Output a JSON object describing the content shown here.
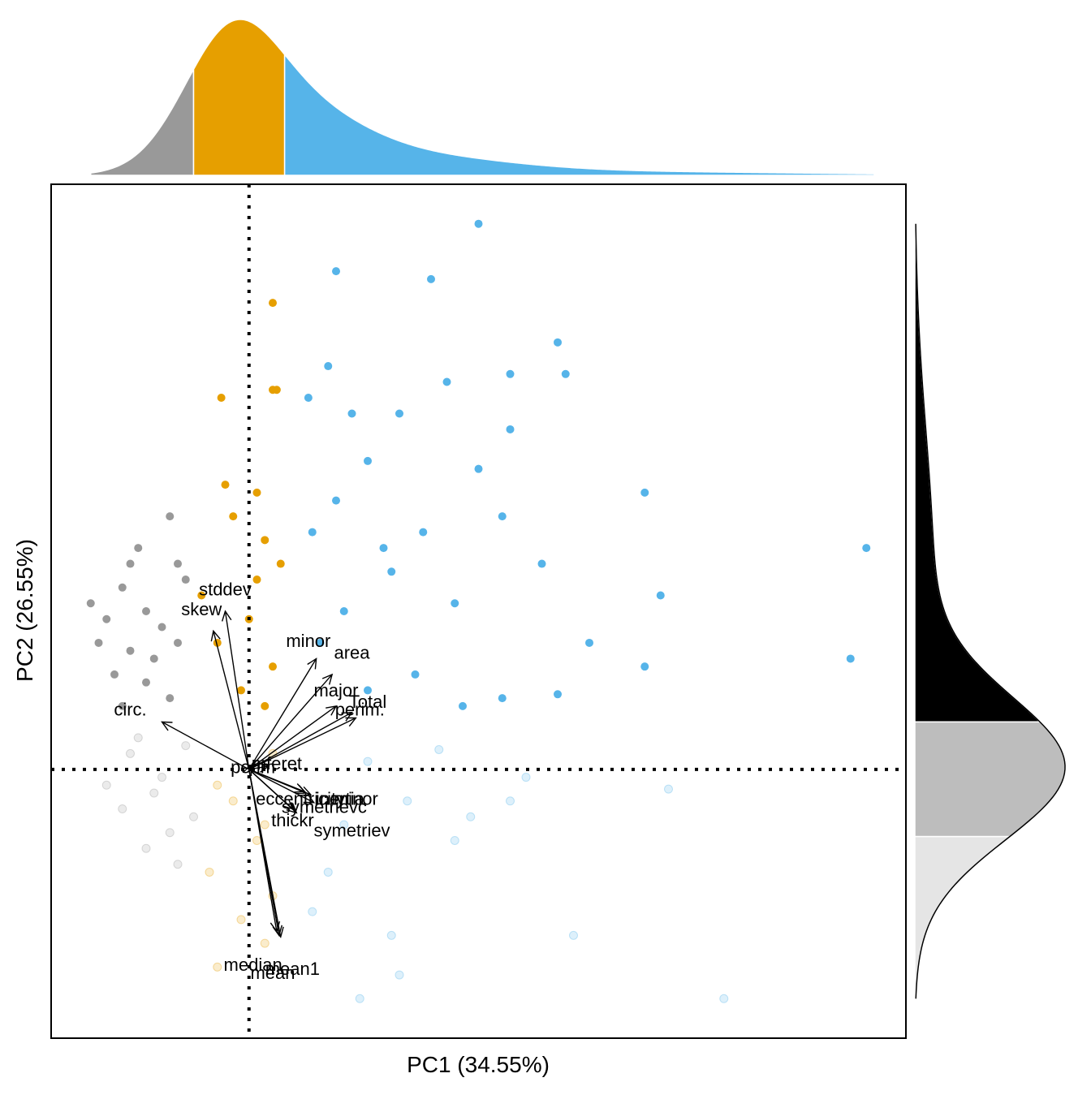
{
  "chart_data": {
    "type": "scatter",
    "subtype": "pca-biplot-with-marginal-densities",
    "xlabel": "PC1 (34.55%)",
    "ylabel": "PC2 (26.55%)",
    "xlim": [
      -2.5,
      8.3
    ],
    "ylim": [
      -3.4,
      7.4
    ],
    "reference_lines": {
      "x": 0,
      "y": 0,
      "style": "dotted"
    },
    "colors": {
      "group_low": "#999999",
      "group_mid": "#E69F00",
      "group_high": "#56B4E9",
      "density_top": "#000000",
      "density_mid": "#bdbdbd",
      "density_low": "#e5e5e5"
    },
    "x_group_breaks": [
      -0.7,
      0.45
    ],
    "y_group_breaks": [
      0.6,
      -0.85
    ],
    "series": [
      {
        "group": "low-PC1",
        "highlighted": [
          [
            -2.0,
            2.1
          ],
          [
            -1.8,
            1.9
          ],
          [
            -1.6,
            2.3
          ],
          [
            -1.5,
            1.5
          ],
          [
            -1.3,
            2.0
          ],
          [
            -1.2,
            1.4
          ],
          [
            -1.0,
            3.2
          ],
          [
            -0.9,
            2.6
          ],
          [
            -1.4,
            2.8
          ],
          [
            -1.1,
            1.8
          ],
          [
            -0.8,
            2.4
          ],
          [
            -1.7,
            1.2
          ],
          [
            -1.3,
            1.1
          ],
          [
            -0.9,
            1.6
          ],
          [
            -1.0,
            0.9
          ],
          [
            -1.6,
            0.8
          ],
          [
            -1.9,
            1.6
          ],
          [
            -1.5,
            2.6
          ]
        ],
        "faded": [
          [
            -1.5,
            0.2
          ],
          [
            -1.2,
            -0.3
          ],
          [
            -1.0,
            -0.8
          ],
          [
            -0.8,
            0.3
          ],
          [
            -1.3,
            -1.0
          ],
          [
            -1.6,
            -0.5
          ],
          [
            -0.9,
            -1.2
          ],
          [
            -1.4,
            0.4
          ],
          [
            -1.1,
            -0.1
          ],
          [
            -0.7,
            -0.6
          ],
          [
            -1.8,
            -0.2
          ]
        ]
      },
      {
        "group": "mid-PC1",
        "highlighted": [
          [
            0.3,
            5.9
          ],
          [
            0.3,
            4.8
          ],
          [
            0.35,
            4.8
          ],
          [
            -0.35,
            4.7
          ],
          [
            -0.3,
            3.6
          ],
          [
            0.1,
            3.5
          ],
          [
            -0.2,
            3.2
          ],
          [
            0.2,
            2.9
          ],
          [
            0.4,
            2.6
          ],
          [
            0.0,
            1.9
          ],
          [
            -0.4,
            1.6
          ],
          [
            0.3,
            1.3
          ],
          [
            -0.1,
            1.0
          ],
          [
            0.2,
            0.8
          ],
          [
            -0.6,
            2.2
          ],
          [
            0.1,
            2.4
          ]
        ],
        "faded": [
          [
            -0.2,
            -0.4
          ],
          [
            0.1,
            -0.9
          ],
          [
            0.3,
            -1.6
          ],
          [
            -0.4,
            -0.2
          ],
          [
            0.2,
            -0.7
          ],
          [
            -0.1,
            -1.9
          ],
          [
            -0.4,
            -2.5
          ],
          [
            0.2,
            -2.2
          ],
          [
            -0.5,
            -1.3
          ],
          [
            0.3,
            0.2
          ]
        ]
      },
      {
        "group": "high-PC1",
        "highlighted": [
          [
            2.9,
            6.9
          ],
          [
            1.1,
            6.3
          ],
          [
            2.3,
            6.2
          ],
          [
            3.9,
            5.4
          ],
          [
            4.0,
            5.0
          ],
          [
            3.3,
            5.0
          ],
          [
            2.5,
            4.9
          ],
          [
            1.0,
            5.1
          ],
          [
            0.75,
            4.7
          ],
          [
            1.9,
            4.5
          ],
          [
            3.3,
            4.3
          ],
          [
            1.3,
            4.5
          ],
          [
            5.0,
            3.5
          ],
          [
            7.8,
            2.8
          ],
          [
            5.2,
            2.2
          ],
          [
            7.6,
            1.4
          ],
          [
            4.3,
            1.6
          ],
          [
            5.0,
            1.3
          ],
          [
            3.7,
            2.6
          ],
          [
            2.6,
            2.1
          ],
          [
            1.8,
            2.5
          ],
          [
            1.2,
            2.0
          ],
          [
            0.9,
            1.6
          ],
          [
            1.5,
            1.0
          ],
          [
            2.1,
            1.2
          ],
          [
            3.2,
            0.9
          ],
          [
            3.9,
            0.95
          ],
          [
            2.7,
            0.8
          ],
          [
            1.1,
            3.4
          ],
          [
            1.5,
            3.9
          ],
          [
            2.9,
            3.8
          ],
          [
            3.2,
            3.2
          ],
          [
            2.2,
            3.0
          ],
          [
            1.7,
            2.8
          ],
          [
            0.8,
            3.0
          ]
        ],
        "faded": [
          [
            1.5,
            0.1
          ],
          [
            2.0,
            -0.4
          ],
          [
            2.6,
            -0.9
          ],
          [
            3.5,
            -0.1
          ],
          [
            5.3,
            -0.25
          ],
          [
            1.0,
            -1.3
          ],
          [
            1.8,
            -2.1
          ],
          [
            4.1,
            -2.1
          ],
          [
            6.0,
            -2.9
          ],
          [
            1.9,
            -2.6
          ],
          [
            2.8,
            -0.6
          ],
          [
            3.3,
            -0.4
          ],
          [
            1.2,
            -0.7
          ],
          [
            2.4,
            0.25
          ],
          [
            0.8,
            -1.8
          ],
          [
            1.4,
            -2.9
          ]
        ]
      }
    ],
    "loadings": [
      {
        "label": "stddev",
        "x": -0.3,
        "y": 2.0
      },
      {
        "label": "skew",
        "x": -0.45,
        "y": 1.75
      },
      {
        "label": "minor",
        "x": 0.85,
        "y": 1.4
      },
      {
        "label": "area",
        "x": 1.05,
        "y": 1.2
      },
      {
        "label": "major",
        "x": 1.1,
        "y": 0.8
      },
      {
        "label": "Total",
        "x": 1.3,
        "y": 0.72
      },
      {
        "label": "perim.",
        "x": 1.35,
        "y": 0.65
      },
      {
        "label": "circ.",
        "x": -1.1,
        "y": 0.6
      },
      {
        "label": "perim",
        "x": 0.02,
        "y": 0.05
      },
      {
        "label": "mferet",
        "x": 0.25,
        "y": 0.04
      },
      {
        "label": "eccentricity",
        "x": 0.7,
        "y": -0.28
      },
      {
        "label": "inertia",
        "x": 0.78,
        "y": -0.32
      },
      {
        "label": "minor",
        "x": 0.72,
        "y": -0.3
      },
      {
        "label": "symetrievc",
        "x": 0.82,
        "y": -0.42
      },
      {
        "label": "thickr",
        "x": 0.55,
        "y": -0.5
      },
      {
        "label": "symetriev",
        "x": 0.6,
        "y": -0.55
      },
      {
        "label": "median",
        "x": 0.35,
        "y": -2.05
      },
      {
        "label": "mean",
        "x": 0.38,
        "y": -2.1
      },
      {
        "label": "mean1",
        "x": 0.4,
        "y": -2.12
      }
    ],
    "loading_label_positions": [
      {
        "label": "stddev",
        "x": -0.3,
        "y": 2.2
      },
      {
        "label": "skew",
        "x": -0.6,
        "y": 1.95
      },
      {
        "label": "minor",
        "x": 0.75,
        "y": 1.55
      },
      {
        "label": "area",
        "x": 1.3,
        "y": 1.4
      },
      {
        "label": "major",
        "x": 1.1,
        "y": 0.92
      },
      {
        "label": "Total",
        "x": 1.5,
        "y": 0.78
      },
      {
        "label": "perim.",
        "x": 1.4,
        "y": 0.68
      },
      {
        "label": "circ.",
        "x": -1.5,
        "y": 0.68
      },
      {
        "label": "perim",
        "x": 0.05,
        "y": -0.05
      },
      {
        "label": "mferet",
        "x": 0.35,
        "y": 0.0
      },
      {
        "label": "eccentricity",
        "x": 0.65,
        "y": -0.45
      },
      {
        "label": "inertia",
        "x": 1.15,
        "y": -0.45
      },
      {
        "label": "minor",
        "x": 1.35,
        "y": -0.45
      },
      {
        "label": "symetrievc",
        "x": 0.95,
        "y": -0.55
      },
      {
        "label": "thickr",
        "x": 0.55,
        "y": -0.72
      },
      {
        "label": "symetriev",
        "x": 1.3,
        "y": -0.85
      },
      {
        "label": "median",
        "x": 0.05,
        "y": -2.55
      },
      {
        "label": "mean1",
        "x": 0.55,
        "y": -2.6
      },
      {
        "label": "mean",
        "x": 0.3,
        "y": -2.65
      }
    ]
  }
}
